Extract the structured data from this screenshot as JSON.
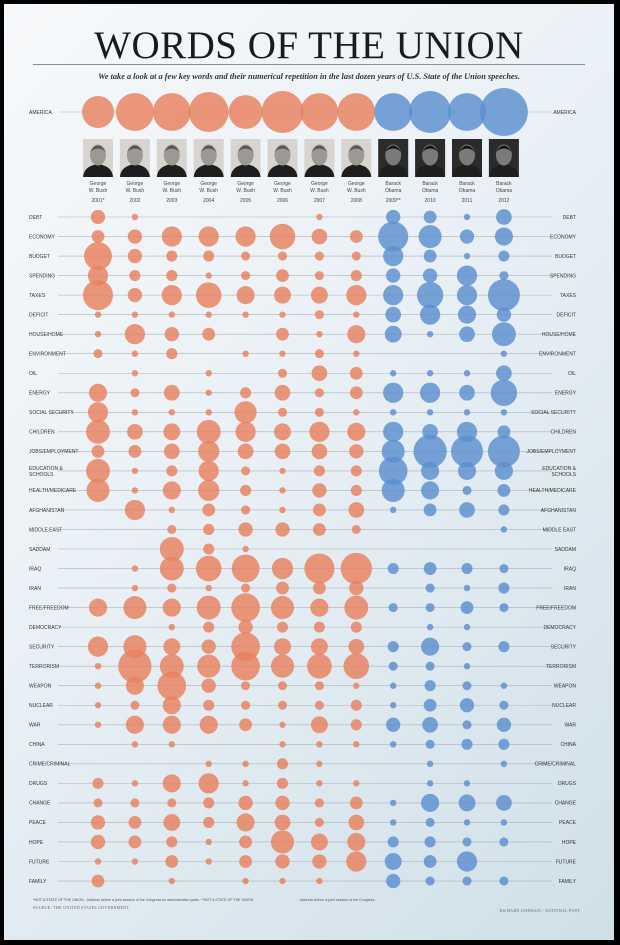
{
  "chart_data": {
    "type": "scatter",
    "title": "WORDS OF THE UNION",
    "subtitle": "We take a look at a few key words and their numerical repetition in the last dozen years of U.S. State of the Union speeches.",
    "colors": {
      "bush": "#e8805e",
      "obama": "#5b8fcf",
      "line": "#a9b3bb"
    },
    "columns": [
      {
        "name1": "George",
        "name2": "W. Bush",
        "year": "2001*",
        "party": "bush"
      },
      {
        "name1": "George",
        "name2": "W. Bush",
        "year": "2002",
        "party": "bush"
      },
      {
        "name1": "George",
        "name2": "W. Bush",
        "year": "2003",
        "party": "bush"
      },
      {
        "name1": "George",
        "name2": "W. Bush",
        "year": "2004",
        "party": "bush"
      },
      {
        "name1": "George",
        "name2": "W. Bush",
        "year": "2005",
        "party": "bush"
      },
      {
        "name1": "George",
        "name2": "W. Bush",
        "year": "2006",
        "party": "bush"
      },
      {
        "name1": "George",
        "name2": "W. Bush",
        "year": "2007",
        "party": "bush"
      },
      {
        "name1": "George",
        "name2": "W. Bush",
        "year": "2008",
        "party": "bush"
      },
      {
        "name1": "Barack",
        "name2": "Obama",
        "year": "2009**",
        "party": "obama"
      },
      {
        "name1": "Barack",
        "name2": "Obama",
        "year": "2010",
        "party": "obama"
      },
      {
        "name1": "Barack",
        "name2": "Obama",
        "year": "2011",
        "party": "obama"
      },
      {
        "name1": "Barack",
        "name2": "Obama",
        "year": "2012",
        "party": "obama"
      }
    ],
    "america": {
      "word": "AMERICA",
      "values": [
        25,
        35,
        35,
        39,
        28,
        43,
        35,
        35,
        35,
        43,
        35,
        56
      ]
    },
    "rows": [
      {
        "word": "DEBT",
        "values": [
          5,
          1,
          0,
          0,
          0,
          0,
          1,
          0,
          5,
          4,
          1,
          6
        ]
      },
      {
        "word": "ECONOMY",
        "values": [
          4,
          5,
          10,
          10,
          10,
          16,
          6,
          4,
          22,
          13,
          5,
          8
        ]
      },
      {
        "word": "BUDGET",
        "values": [
          19,
          5,
          3,
          3,
          2,
          2,
          2,
          2,
          10,
          4,
          1,
          3
        ]
      },
      {
        "word": "SPENDING",
        "values": [
          10,
          3,
          3,
          1,
          2,
          4,
          2,
          3,
          5,
          5,
          10,
          2
        ]
      },
      {
        "word": "TAXES",
        "values": [
          22,
          5,
          10,
          16,
          8,
          7,
          7,
          10,
          10,
          17,
          10,
          25
        ]
      },
      {
        "word": "DEFICIT",
        "values": [
          1,
          1,
          1,
          1,
          1,
          1,
          2,
          1,
          6,
          10,
          8,
          5
        ]
      },
      {
        "word": "HOUSE/HOME",
        "values": [
          1,
          10,
          5,
          4,
          0,
          4,
          1,
          8,
          7,
          1,
          6,
          14
        ]
      },
      {
        "word": "ENVIRONMENT",
        "values": [
          2,
          1,
          3,
          0,
          1,
          1,
          2,
          1,
          0,
          0,
          0,
          1
        ]
      },
      {
        "word": "OIL",
        "values": [
          0,
          1,
          0,
          1,
          0,
          2,
          6,
          4,
          1,
          1,
          1,
          6
        ]
      },
      {
        "word": "ENERGY",
        "values": [
          8,
          2,
          6,
          1,
          3,
          6,
          2,
          4,
          10,
          10,
          6,
          17
        ]
      },
      {
        "word": "SOCIAL SECURITY",
        "values": [
          10,
          1,
          1,
          1,
          12,
          2,
          2,
          1,
          1,
          1,
          1,
          1
        ]
      },
      {
        "word": "CHILDREN",
        "values": [
          14,
          6,
          7,
          14,
          10,
          7,
          10,
          8,
          10,
          6,
          10,
          4
        ]
      },
      {
        "word": "JOBS/EMPLOYMENT",
        "values": [
          4,
          4,
          6,
          11,
          6,
          6,
          6,
          5,
          13,
          27,
          25,
          25
        ]
      },
      {
        "word": "EDUCATION &",
        "word2": "SCHOOLS",
        "values": [
          14,
          1,
          3,
          10,
          2,
          1,
          3,
          3,
          20,
          8,
          8,
          8
        ]
      },
      {
        "word": "HEALTH/MEDICARE",
        "values": [
          13,
          1,
          8,
          11,
          3,
          1,
          5,
          3,
          13,
          8,
          2,
          4
        ]
      },
      {
        "word": "AFGHANISTAN",
        "values": [
          0,
          10,
          1,
          4,
          2,
          1,
          4,
          6,
          1,
          4,
          6,
          3
        ]
      },
      {
        "word": "MIDDLE EAST",
        "values": [
          0,
          0,
          2,
          3,
          5,
          5,
          4,
          2,
          0,
          0,
          0,
          1
        ]
      },
      {
        "word": "SADDAM",
        "values": [
          0,
          0,
          14,
          3,
          1,
          0,
          0,
          0,
          0,
          0,
          0,
          0
        ]
      },
      {
        "word": "IRAQ",
        "values": [
          0,
          1,
          14,
          16,
          19,
          11,
          22,
          24,
          3,
          4,
          3,
          2
        ]
      },
      {
        "word": "IRAN",
        "values": [
          0,
          1,
          2,
          1,
          2,
          4,
          4,
          5,
          0,
          2,
          1,
          3
        ]
      },
      {
        "word": "FREE/FREEDOM",
        "values": [
          8,
          13,
          8,
          14,
          20,
          13,
          8,
          14,
          2,
          2,
          4,
          2
        ]
      },
      {
        "word": "DEMOCRACY",
        "values": [
          0,
          0,
          1,
          3,
          5,
          3,
          3,
          3,
          0,
          1,
          1,
          0
        ]
      },
      {
        "word": "SECURITY",
        "values": [
          10,
          13,
          7,
          5,
          20,
          7,
          7,
          6,
          3,
          8,
          2,
          3
        ]
      },
      {
        "word": "TERRORISM",
        "values": [
          1,
          27,
          14,
          13,
          20,
          13,
          15,
          16,
          2,
          2,
          1,
          0
        ]
      },
      {
        "word": "WEAPON",
        "values": [
          1,
          8,
          20,
          5,
          2,
          2,
          2,
          1,
          1,
          3,
          2,
          1
        ]
      },
      {
        "word": "NUCLEAR",
        "values": [
          1,
          2,
          8,
          3,
          2,
          2,
          2,
          3,
          1,
          4,
          5,
          2
        ]
      },
      {
        "word": "WAR",
        "values": [
          1,
          8,
          8,
          8,
          4,
          1,
          7,
          3,
          5,
          6,
          2,
          5
        ]
      },
      {
        "word": "CHINA",
        "values": [
          0,
          1,
          1,
          0,
          0,
          1,
          1,
          1,
          1,
          2,
          3,
          3
        ]
      },
      {
        "word": "CRIME/CRIMINAL",
        "values": [
          0,
          0,
          0,
          1,
          1,
          3,
          1,
          0,
          0,
          1,
          0,
          1
        ]
      },
      {
        "word": "DRUGS",
        "values": [
          3,
          1,
          8,
          10,
          1,
          3,
          1,
          1,
          0,
          1,
          1,
          0
        ]
      },
      {
        "word": "CHANGE",
        "values": [
          2,
          2,
          2,
          3,
          5,
          5,
          2,
          4,
          1,
          8,
          7,
          6
        ]
      },
      {
        "word": "PEACE",
        "values": [
          5,
          4,
          7,
          3,
          8,
          6,
          2,
          6,
          1,
          2,
          1,
          1
        ]
      },
      {
        "word": "HOPE",
        "values": [
          5,
          4,
          3,
          1,
          4,
          13,
          7,
          8,
          3,
          3,
          2,
          2
        ]
      },
      {
        "word": "FUTURE",
        "values": [
          1,
          1,
          4,
          1,
          4,
          5,
          5,
          10,
          7,
          4,
          10,
          0
        ]
      },
      {
        "word": "FAMILY",
        "values": [
          4,
          0,
          1,
          0,
          1,
          1,
          1,
          0,
          5,
          2,
          2,
          2
        ]
      }
    ]
  },
  "footer": {
    "note1": "*NOT A STATE OF THE UNION - Address before a joint session of the Congress on administration goals. **NOT A STATE OF THE UNION",
    "note2": "- Address before a joint session of the Congress.",
    "source": "SOURCE: THE UNITED STATES GOVERNMENT",
    "credit": "RICHARD JOHNSON / NATIONAL POST"
  }
}
